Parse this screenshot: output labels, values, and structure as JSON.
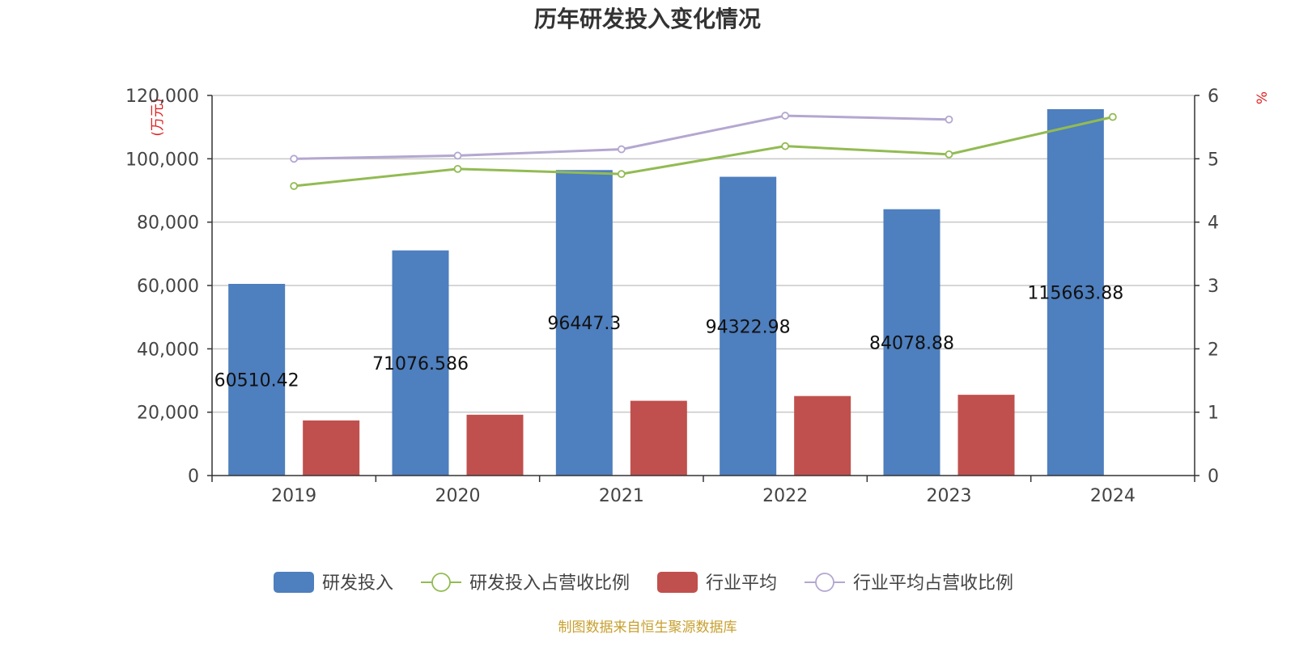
{
  "chart_data": {
    "type": "bar",
    "title": "历年研发投入变化情况",
    "categories": [
      "2019",
      "2020",
      "2021",
      "2022",
      "2023",
      "2024"
    ],
    "y_left": {
      "unit": "(万元)",
      "range": [
        0,
        120000
      ],
      "ticks": [
        "0",
        "20,000",
        "40,000",
        "60,000",
        "80,000",
        "100,000",
        "120,000"
      ],
      "tick_values": [
        0,
        20000,
        40000,
        60000,
        80000,
        100000,
        120000
      ]
    },
    "y_right": {
      "unit": "%",
      "range": [
        0,
        6
      ],
      "ticks": [
        "0",
        "1",
        "2",
        "3",
        "4",
        "5",
        "6"
      ],
      "tick_values": [
        0,
        1,
        2,
        3,
        4,
        5,
        6
      ]
    },
    "series": [
      {
        "name": "研发投入",
        "kind": "bar",
        "axis": "left",
        "color": "#4e7fbe",
        "values": [
          60510.42,
          71076.586,
          96447.3,
          94322.98,
          84078.88,
          115663.88
        ],
        "labels": [
          "60510.42",
          "71076.586",
          "96447.3",
          "94322.98",
          "84078.88",
          "115663.88"
        ]
      },
      {
        "name": "研发投入占营收比例",
        "kind": "line",
        "axis": "right",
        "color": "#92bb53",
        "values": [
          4.57,
          4.84,
          4.76,
          5.2,
          5.07,
          5.66
        ]
      },
      {
        "name": "行业平均",
        "kind": "bar",
        "axis": "left",
        "color": "#c0504d",
        "values": [
          17400,
          19200,
          23600,
          25100,
          25500,
          null
        ]
      },
      {
        "name": "行业平均占营收比例",
        "kind": "line",
        "axis": "right",
        "color": "#b4a7d0",
        "values": [
          5.0,
          5.05,
          5.15,
          5.68,
          5.62,
          null
        ]
      }
    ],
    "grid": true,
    "legend_position": "bottom"
  },
  "source_note": "制图数据来自恒生聚源数据库"
}
